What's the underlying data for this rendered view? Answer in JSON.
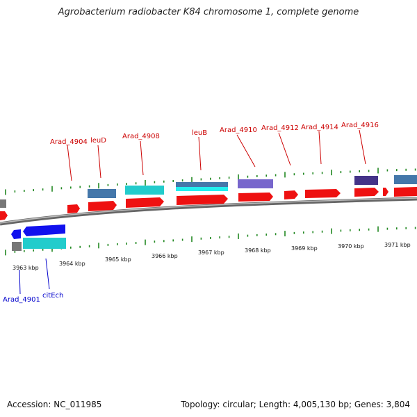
{
  "title": "Agrobacterium radiobacter K84 chromosome 1, complete genome",
  "footer": {
    "accession": "Accession: NC_011985",
    "summary": "Topology: circular; Length: 4,005,130 bp; Genes: 3,804"
  },
  "colors": {
    "cds_forward": "#ee1111",
    "cds_reverse": "#1111ee",
    "gene_steel": "#4477aa",
    "gene_cyan": "#22cccc",
    "gene_purple": "#7766cc",
    "gene_navy": "#443388",
    "grey_gene": "#777777",
    "backbone": "#888888",
    "tick": "#228822",
    "label_forward": "#cc0000",
    "label_reverse": "#0000cc"
  },
  "scale": {
    "unit": "kbp",
    "labels": [
      "3963 kbp",
      "3964 kbp",
      "3965 kbp",
      "3966 kbp",
      "3967 kbp",
      "3968 kbp",
      "3969 kbp",
      "3970 kbp",
      "3971 kbp"
    ]
  },
  "forward_genes": {
    "labels": [
      "Arad_4904",
      "leuD",
      "Arad_4908",
      "leuB",
      "Arad_4910",
      "Arad_4912",
      "Arad_4914",
      "Arad_4916"
    ]
  },
  "reverse_genes": {
    "labels": [
      "Arad_4901",
      "citEch"
    ]
  }
}
